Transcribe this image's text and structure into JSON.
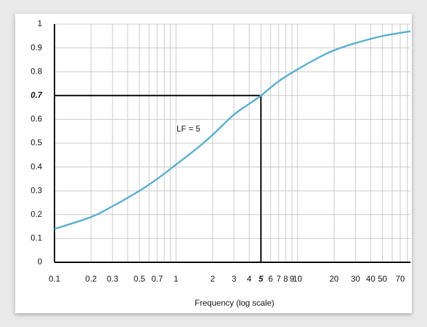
{
  "chart_data": {
    "type": "line",
    "xlabel": "Frequency (log scale)",
    "annotation": "LF = 5",
    "xscale": "log",
    "grid": true,
    "xlim": [
      0.1,
      85
    ],
    "ylim": [
      0,
      1
    ],
    "xticks": [
      0.1,
      0.2,
      0.3,
      0.5,
      0.7,
      1,
      2,
      3,
      4,
      5,
      6,
      7,
      8,
      9,
      10,
      20,
      30,
      40,
      50,
      70
    ],
    "xminor": [
      0.4,
      0.6,
      0.8,
      0.9,
      60,
      80
    ],
    "yticks": [
      0,
      0.1,
      0.2,
      0.3,
      0.4,
      0.5,
      0.6,
      0.7,
      0.8,
      0.9,
      1
    ],
    "highlight": {
      "x": 5,
      "y": 0.7
    },
    "series": [
      {
        "color": "#58aed0",
        "x": [
          0.1,
          0.2,
          0.3,
          0.5,
          0.7,
          1,
          1.5,
          2,
          3,
          4,
          5,
          7,
          10,
          15,
          20,
          30,
          50,
          85
        ],
        "values": [
          0.14,
          0.19,
          0.235,
          0.3,
          0.35,
          0.41,
          0.48,
          0.535,
          0.62,
          0.665,
          0.7,
          0.76,
          0.81,
          0.86,
          0.89,
          0.92,
          0.95,
          0.97
        ]
      }
    ]
  }
}
